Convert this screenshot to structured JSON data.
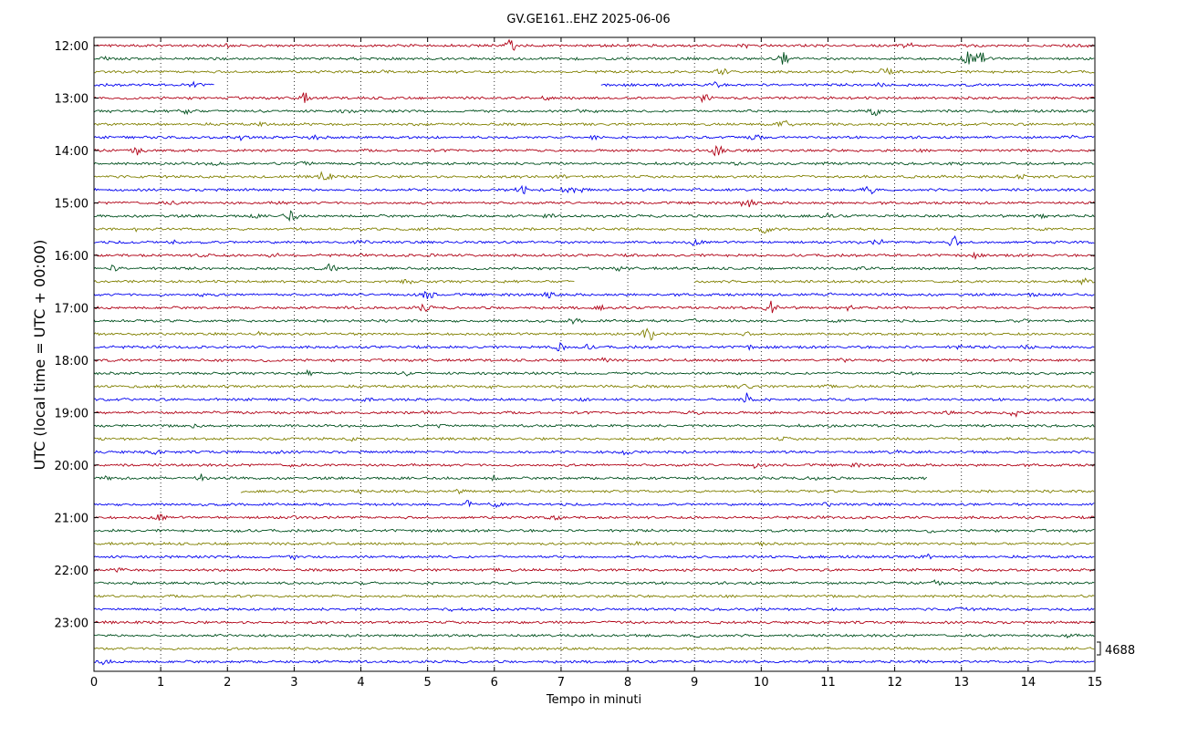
{
  "chart_data": {
    "type": "line",
    "title": "GV.GE161..EHZ 2025-06-06",
    "xlabel": "Tempo in minuti",
    "ylabel": "UTC (local time = UTC + 00:00)",
    "xlim": [
      0,
      15
    ],
    "x_ticks": [
      "0",
      "1",
      "2",
      "3",
      "4",
      "5",
      "6",
      "7",
      "8",
      "9",
      "10",
      "11",
      "12",
      "13",
      "14",
      "15"
    ],
    "y_ticks": [
      "12:00",
      "13:00",
      "14:00",
      "15:00",
      "16:00",
      "17:00",
      "18:00",
      "19:00",
      "20:00",
      "21:00",
      "22:00",
      "23:00"
    ],
    "trace_colors": [
      "#b00015",
      "#00501e",
      "#808000",
      "#0000f0"
    ],
    "scale_label": "4688",
    "grid": "vertical-dotted",
    "traces": [
      {
        "start": "12:00",
        "events": [
          [
            2,
            0.5
          ],
          [
            6.25,
            1.6
          ],
          [
            9.8,
            0.4
          ],
          [
            12.2,
            0.5
          ],
          [
            14.8,
            0.4
          ]
        ]
      },
      {
        "start": "12:15",
        "events": [
          [
            0.2,
            0.4
          ],
          [
            10.35,
            1.8
          ],
          [
            13.1,
            1.5
          ],
          [
            13.3,
            2.2
          ]
        ]
      },
      {
        "start": "12:30",
        "events": [
          [
            4.3,
            0.4
          ],
          [
            9.4,
            0.9
          ],
          [
            11.85,
            0.9
          ]
        ]
      },
      {
        "start": "12:45",
        "to": 1.8,
        "from2": 7.6,
        "events": [
          [
            1.5,
            0.5
          ],
          [
            9.3,
            0.6
          ],
          [
            11.8,
            0.4
          ]
        ]
      },
      {
        "start": "13:00",
        "events": [
          [
            3.15,
            1.2
          ],
          [
            9.15,
            1.1
          ],
          [
            6.8,
            0.3
          ]
        ]
      },
      {
        "start": "13:15",
        "events": [
          [
            1.4,
            1.0
          ],
          [
            3.8,
            0.5
          ],
          [
            11.7,
            1.1
          ],
          [
            7.3,
            0.4
          ]
        ]
      },
      {
        "start": "13:30",
        "events": [
          [
            10.35,
            1.1
          ],
          [
            2.5,
            0.3
          ]
        ]
      },
      {
        "start": "13:45",
        "events": [
          [
            2.2,
            0.6
          ],
          [
            3.3,
            0.7
          ],
          [
            7.5,
            0.6
          ],
          [
            9.9,
            1.2
          ],
          [
            14.6,
            0.3
          ]
        ]
      },
      {
        "start": "14:00",
        "events": [
          [
            0.65,
            0.8
          ],
          [
            9.35,
            1.6
          ],
          [
            12.4,
            0.4
          ]
        ]
      },
      {
        "start": "14:15",
        "events": [
          [
            1.8,
            0.4
          ],
          [
            3.15,
            0.9
          ],
          [
            9.7,
            0.3
          ],
          [
            10.9,
            0.3
          ]
        ]
      },
      {
        "start": "14:30",
        "events": [
          [
            3.45,
            1.6
          ],
          [
            7.0,
            0.5
          ],
          [
            13.9,
            0.4
          ]
        ]
      },
      {
        "start": "14:45",
        "events": [
          [
            6.4,
            1.2
          ],
          [
            7.1,
            0.8
          ],
          [
            7.3,
            0.8
          ],
          [
            11.6,
            1.6
          ],
          [
            9.0,
            0.4
          ]
        ]
      },
      {
        "start": "15:00",
        "events": [
          [
            1.15,
            0.6
          ],
          [
            9.8,
            1.4
          ],
          [
            2.8,
            0.3
          ]
        ]
      },
      {
        "start": "15:15",
        "events": [
          [
            2.95,
            1.6
          ],
          [
            2.4,
            0.4
          ],
          [
            6.8,
            0.4
          ],
          [
            11.0,
            0.3
          ],
          [
            14.2,
            0.4
          ]
        ]
      },
      {
        "start": "15:30",
        "events": [
          [
            0.6,
            0.4
          ],
          [
            10.05,
            0.9
          ],
          [
            4.9,
            0.3
          ]
        ]
      },
      {
        "start": "15:45",
        "events": [
          [
            1.2,
            0.3
          ],
          [
            4.0,
            0.4
          ],
          [
            9.0,
            0.6
          ],
          [
            11.75,
            0.6
          ],
          [
            12.9,
            1.3
          ]
        ]
      },
      {
        "start": "16:00",
        "events": [
          [
            1.65,
            0.6
          ],
          [
            2.7,
            0.5
          ],
          [
            5.1,
            0.4
          ],
          [
            13.2,
            0.4
          ]
        ]
      },
      {
        "start": "16:15",
        "events": [
          [
            0.3,
            0.7
          ],
          [
            3.55,
            1.1
          ],
          [
            7.9,
            0.4
          ],
          [
            11.5,
            0.3
          ]
        ]
      },
      {
        "start": "16:30",
        "to": 7.2,
        "from2": 9.0,
        "events": [
          [
            4.7,
            0.5
          ],
          [
            14.85,
            0.9
          ]
        ]
      },
      {
        "start": "16:45",
        "events": [
          [
            5.0,
            1.4
          ],
          [
            6.8,
            0.7
          ],
          [
            11.0,
            0.5
          ],
          [
            1.6,
            0.3
          ],
          [
            14.1,
            0.4
          ]
        ]
      },
      {
        "start": "17:00",
        "events": [
          [
            4.95,
            1.0
          ],
          [
            10.15,
            1.9
          ],
          [
            11.3,
            0.5
          ],
          [
            7.6,
            0.4
          ]
        ]
      },
      {
        "start": "17:15",
        "events": [
          [
            7.2,
            0.5
          ],
          [
            9.0,
            0.4
          ],
          [
            13.9,
            0.4
          ]
        ]
      },
      {
        "start": "17:30",
        "events": [
          [
            8.3,
            1.9
          ],
          [
            2.5,
            0.3
          ],
          [
            9.8,
            0.3
          ]
        ]
      },
      {
        "start": "17:45",
        "events": [
          [
            7.0,
            1.8
          ],
          [
            7.4,
            0.5
          ],
          [
            9.8,
            0.4
          ],
          [
            13.0,
            0.5
          ],
          [
            14.0,
            0.5
          ]
        ]
      },
      {
        "start": "18:00",
        "events": [
          [
            7.6,
            0.6
          ],
          [
            11.2,
            0.5
          ],
          [
            2.5,
            0.3
          ]
        ]
      },
      {
        "start": "18:15",
        "events": [
          [
            3.2,
            0.4
          ],
          [
            4.7,
            0.3
          ],
          [
            12.2,
            0.3
          ],
          [
            14.4,
            0.4
          ]
        ]
      },
      {
        "start": "18:30",
        "events": [
          [
            9.75,
            0.9
          ],
          [
            11.0,
            0.5
          ],
          [
            6.0,
            0.3
          ]
        ]
      },
      {
        "start": "18:45",
        "events": [
          [
            9.8,
            1.9
          ],
          [
            7.4,
            0.5
          ],
          [
            4.1,
            0.3
          ]
        ]
      },
      {
        "start": "19:00",
        "events": [
          [
            13.8,
            1.0
          ],
          [
            9.0,
            0.5
          ],
          [
            5.0,
            0.3
          ],
          [
            12.8,
            0.3
          ]
        ]
      },
      {
        "start": "19:15",
        "events": [
          [
            5.2,
            0.5
          ],
          [
            1.5,
            0.3
          ]
        ]
      },
      {
        "start": "19:30",
        "events": [
          [
            3.9,
            0.3
          ],
          [
            10.3,
            0.3
          ]
        ]
      },
      {
        "start": "19:45",
        "events": [
          [
            0.9,
            0.5
          ],
          [
            2.7,
            0.4
          ],
          [
            8.0,
            0.6
          ],
          [
            12.0,
            0.3
          ]
        ]
      },
      {
        "start": "20:00",
        "events": [
          [
            9.9,
            0.6
          ],
          [
            3.0,
            0.3
          ],
          [
            11.4,
            0.3
          ]
        ]
      },
      {
        "start": "20:15",
        "to": 12.5,
        "events": [
          [
            1.6,
            0.9
          ],
          [
            6.0,
            0.5
          ],
          [
            10.8,
            0.5
          ],
          [
            0.2,
            0.3
          ]
        ]
      },
      {
        "start": "20:30",
        "from": 2.2,
        "events": [
          [
            4.0,
            0.3
          ],
          [
            5.5,
            0.3
          ]
        ]
      },
      {
        "start": "20:45",
        "events": [
          [
            5.6,
            0.7
          ],
          [
            6.0,
            0.4
          ],
          [
            11.0,
            0.3
          ]
        ]
      },
      {
        "start": "21:00",
        "events": [
          [
            1.0,
            0.7
          ],
          [
            6.9,
            0.5
          ],
          [
            3.0,
            0.3
          ]
        ]
      },
      {
        "start": "21:15",
        "events": [
          [
            2.1,
            0.4
          ],
          [
            12.5,
            0.4
          ]
        ]
      },
      {
        "start": "21:30",
        "events": [
          [
            8.2,
            0.4
          ],
          [
            10.0,
            0.3
          ]
        ]
      },
      {
        "start": "21:45",
        "events": [
          [
            3.0,
            0.4
          ],
          [
            12.5,
            0.5
          ]
        ]
      },
      {
        "start": "22:00",
        "events": [
          [
            0.4,
            0.4
          ],
          [
            6.0,
            0.3
          ]
        ]
      },
      {
        "start": "22:15",
        "events": [
          [
            12.6,
            0.6
          ],
          [
            4.0,
            0.3
          ]
        ]
      },
      {
        "start": "22:30",
        "events": [
          [
            9.5,
            0.3
          ]
        ]
      },
      {
        "start": "22:45",
        "events": [
          [
            5.3,
            0.3
          ],
          [
            13.0,
            0.3
          ]
        ]
      },
      {
        "start": "23:00",
        "events": [
          [
            8.0,
            0.3
          ]
        ]
      },
      {
        "start": "23:15",
        "events": [
          [
            9.0,
            0.4
          ],
          [
            14.6,
            0.5
          ]
        ]
      },
      {
        "start": "23:30",
        "events": [
          [
            3.0,
            0.2
          ]
        ]
      },
      {
        "start": "23:45",
        "events": [
          [
            0.15,
            0.5
          ],
          [
            12.5,
            0.4
          ]
        ]
      }
    ]
  }
}
